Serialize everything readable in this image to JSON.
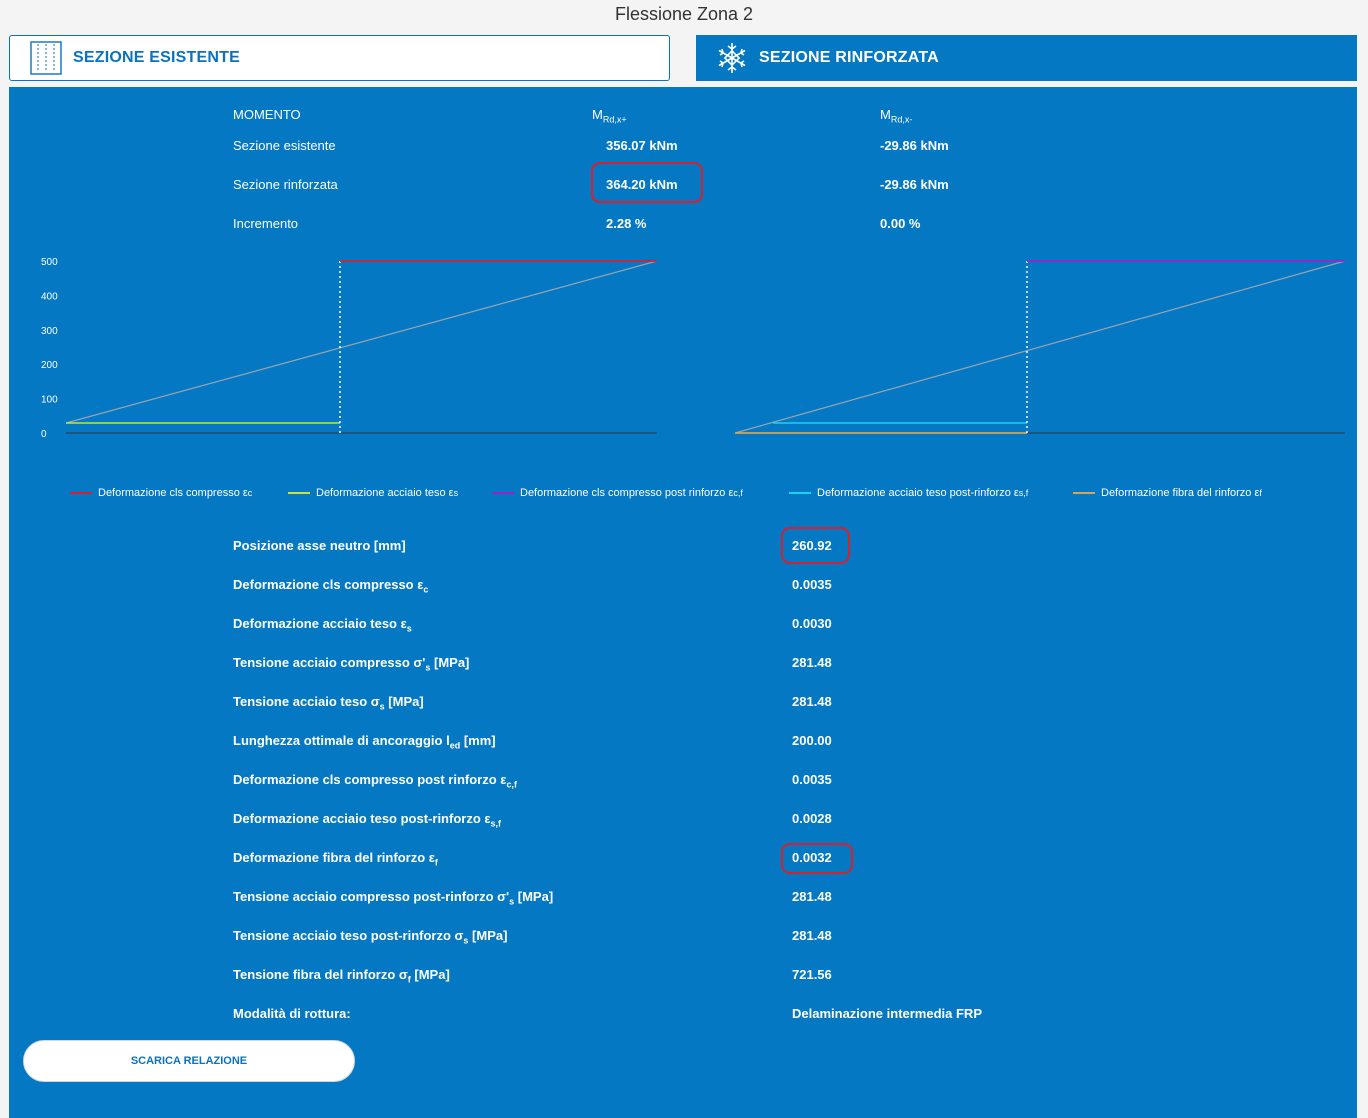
{
  "page": {
    "title": "Flessione Zona 2"
  },
  "tabs": {
    "existing": {
      "label": "SEZIONE ESISTENTE",
      "icon": "section-columns-icon"
    },
    "reinforced": {
      "label": "SEZIONE RINFORZATA",
      "icon": "snowflake-icon",
      "active": true
    }
  },
  "moment_table": {
    "header": {
      "label": "MOMENTO",
      "col_pos_main": "M",
      "col_pos_sub": "Rd,x+",
      "col_neg_main": "M",
      "col_neg_sub": "Rd,x-"
    },
    "rows": [
      {
        "label": "Sezione esistente",
        "pos": "356.07 kNm",
        "neg": "-29.86 kNm"
      },
      {
        "label": "Sezione rinforzata",
        "pos": "364.20 kNm",
        "neg": "-29.86 kNm"
      },
      {
        "label": "Incremento",
        "pos": "2.28 %",
        "neg": "0.00 %"
      }
    ]
  },
  "chart_data": {
    "type": "line",
    "y_ticks": [
      "500",
      "400",
      "300",
      "200",
      "100",
      "0"
    ],
    "ylim": [
      0,
      500
    ],
    "grid": false,
    "legend_position": "bottom",
    "series": [
      {
        "name": "Deformazione cls compresso ε",
        "sub": "c",
        "color": "#d8202e"
      },
      {
        "name": "Deformazione acciaio teso ε",
        "sub": "s",
        "color": "#c7e23c"
      },
      {
        "name": "Deformazione cls compresso post rinforzo ε",
        "sub": "c,f",
        "color": "#a020c8"
      },
      {
        "name": "Deformazione acciaio teso post-rinforzo ε",
        "sub": "s,f",
        "color": "#1ad3f0"
      },
      {
        "name": "Deformazione fibra del rinforzo ε",
        "sub": "f",
        "color": "#d6a45a"
      }
    ],
    "neutral_axis_color": "#9aa4ae"
  },
  "results": {
    "rows": [
      {
        "label": "Posizione asse neutro [mm]",
        "value": "260.92"
      },
      {
        "label": "Deformazione cls compresso ε",
        "label_sub": "c",
        "value": "0.0035"
      },
      {
        "label": "Deformazione acciaio teso ε",
        "label_sub": "s",
        "value": "0.0030"
      },
      {
        "label": "Tensione acciaio compresso σ'",
        "label_sub": "s",
        "label_tail": " [MPa]",
        "value": "281.48"
      },
      {
        "label": "Tensione acciaio teso σ",
        "label_sub": "s",
        "label_tail": " [MPa]",
        "value": "281.48"
      },
      {
        "label": "Lunghezza ottimale di ancoraggio l",
        "label_sub": "ed",
        "label_tail": " [mm]",
        "value": "200.00"
      },
      {
        "label": "Deformazione cls compresso post rinforzo ε",
        "label_sub": "c,f",
        "value": "0.0035"
      },
      {
        "label": "Deformazione acciaio teso post-rinforzo ε",
        "label_sub": "s,f",
        "value": "0.0028"
      },
      {
        "label": "Deformazione fibra del rinforzo ε",
        "label_sub": "f",
        "value": "0.0032"
      },
      {
        "label": "Tensione acciaio compresso post-rinforzo σ'",
        "label_sub": "s",
        "label_tail": " [MPa]",
        "value": "281.48"
      },
      {
        "label": "Tensione acciaio teso post-rinforzo σ",
        "label_sub": "s",
        "label_tail": " [MPa]",
        "value": "281.48"
      },
      {
        "label": "Tensione fibra del rinforzo σ",
        "label_sub": "f",
        "label_tail": " [MPa]",
        "value": "721.56"
      },
      {
        "label": "Modalità di rottura:",
        "value": "Delaminazione intermedia FRP"
      }
    ]
  },
  "actions": {
    "download_label": "SCARICA RELAZIONE"
  }
}
